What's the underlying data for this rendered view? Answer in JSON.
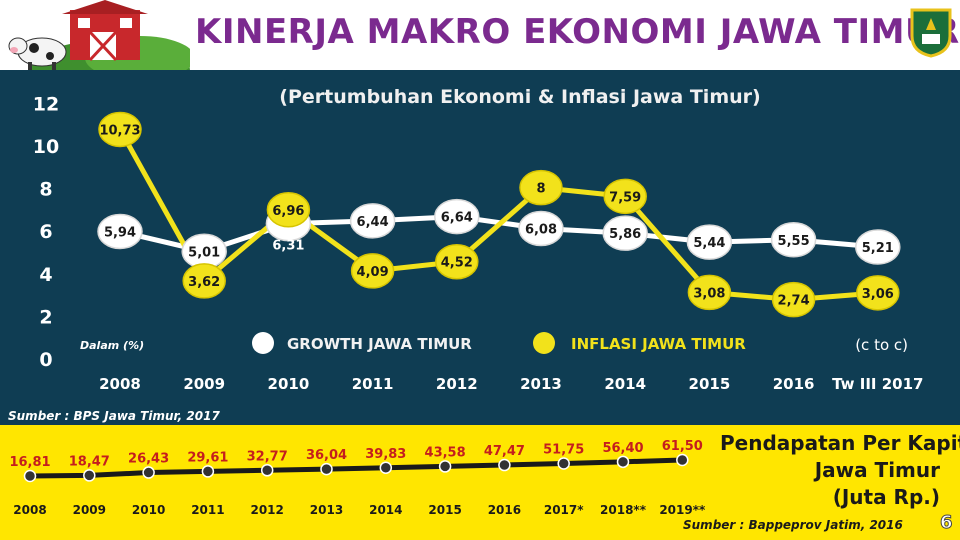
{
  "header": {
    "title": "KINERJA MAKRO EKONOMI JAWA TIMUR"
  },
  "chart_data": [
    {
      "type": "line",
      "title": "(Pertumbuhan Ekonomi & Inflasi Jawa Timur)",
      "unit_note": "Dalam (%)",
      "period_note": "(c to c)",
      "categories": [
        "2008",
        "2009",
        "2010",
        "2011",
        "2012",
        "2013",
        "2014",
        "2015",
        "2016",
        "Tw III 2017"
      ],
      "yticks": [
        "0",
        "2",
        "4",
        "6",
        "8",
        "10",
        "12"
      ],
      "ylim": [
        0,
        12
      ],
      "legend_position": "bottom",
      "series": [
        {
          "name": "GROWTH JAWA TIMUR",
          "color": "#ffffff",
          "values": [
            5.94,
            5.01,
            6.31,
            6.44,
            6.64,
            6.08,
            5.86,
            5.44,
            5.55,
            5.21
          ],
          "labels": [
            "5,94",
            "5,01",
            "6,31",
            "6,44",
            "6,64",
            "6,08",
            "5,86",
            "5,44",
            "5,55",
            "5,21"
          ]
        },
        {
          "name": "INFLASI JAWA TIMUR",
          "color": "#f2e21b",
          "values": [
            10.73,
            3.62,
            6.96,
            4.09,
            4.52,
            8,
            7.59,
            3.08,
            2.74,
            3.06
          ],
          "labels": [
            "10,73",
            "3,62",
            "6,96",
            "4,09",
            "4,52",
            "8",
            "7,59",
            "3,08",
            "2,74",
            "3,06"
          ]
        }
      ],
      "source": "Sumber : BPS Jawa Timur, 2017"
    },
    {
      "type": "line",
      "title": "Pendapatan Per Kapita Jawa Timur (Juta Rp.)",
      "title_lines": [
        "Pendapatan Per Kapita",
        "Jawa Timur",
        "(Juta Rp.)"
      ],
      "categories": [
        "2008",
        "2009",
        "2010",
        "2011",
        "2012",
        "2013",
        "2014",
        "2015",
        "2016",
        "2017*",
        "2018**",
        "2019**"
      ],
      "series": [
        {
          "name": "Pendapatan Per Kapita",
          "color": "#1a1a1a",
          "values": [
            16.81,
            18.47,
            26.43,
            29.61,
            32.77,
            36.04,
            39.83,
            43.58,
            47.47,
            51.75,
            56.4,
            61.5
          ],
          "labels": [
            "16,81",
            "18,47",
            "26,43",
            "29,61",
            "32,77",
            "36,04",
            "39,83",
            "43,58",
            "47,47",
            "51,75",
            "56,40",
            "61,50"
          ],
          "label_color": "#c41e1e"
        }
      ],
      "source": "Sumber : Bappeprov Jatim, 2016"
    }
  ],
  "page_number": "6"
}
